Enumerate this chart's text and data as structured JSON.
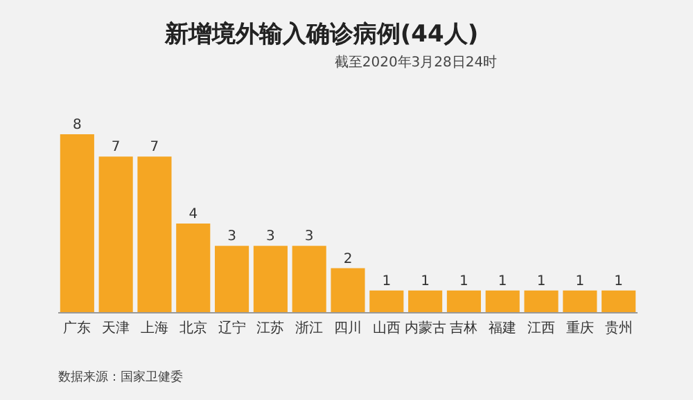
{
  "chart_data": {
    "type": "bar",
    "title": "新增境外输入确诊病例(44人)",
    "subtitle": "截至2020年3月28日24时",
    "categories": [
      "广东",
      "天津",
      "上海",
      "北京",
      "辽宁",
      "江苏",
      "浙江",
      "四川",
      "山西",
      "内蒙古",
      "吉林",
      "福建",
      "江西",
      "重庆",
      "贵州"
    ],
    "values": [
      8,
      7,
      7,
      4,
      3,
      3,
      3,
      2,
      1,
      1,
      1,
      1,
      1,
      1,
      1
    ],
    "color": "#f5a623",
    "data_labels": true,
    "annotations": [
      "数据来源：国家卫健委"
    ]
  }
}
